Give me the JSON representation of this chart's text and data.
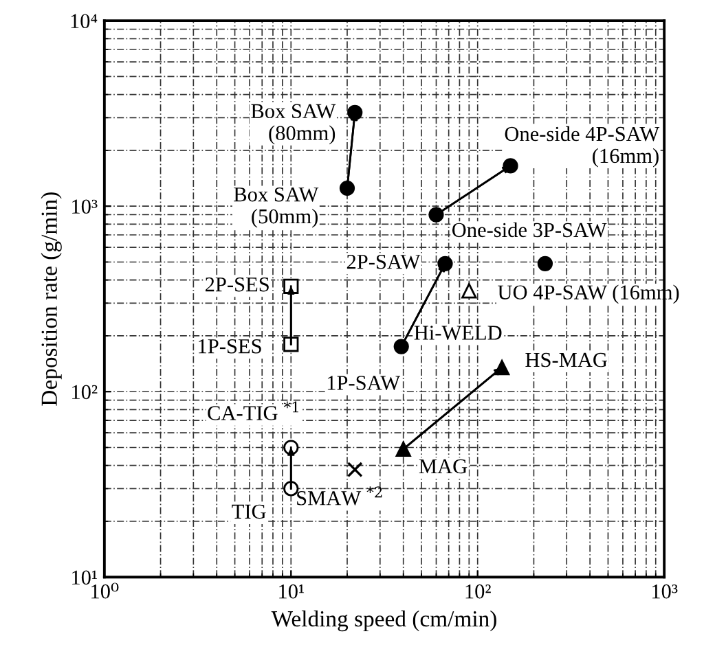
{
  "chart_data": {
    "type": "scatter",
    "xlabel": "Welding speed (cm/min)",
    "ylabel": "Deposition rate (g/min)",
    "log": "xy",
    "grid": true,
    "xlim": [
      1,
      1000
    ],
    "ylim": [
      10,
      10000
    ],
    "xticks": [
      {
        "value": 1,
        "label": "10⁰"
      },
      {
        "value": 10,
        "label": "10¹"
      },
      {
        "value": 100,
        "label": "10²"
      },
      {
        "value": 1000,
        "label": "10³"
      }
    ],
    "yticks": [
      {
        "value": 10,
        "label": "10¹"
      },
      {
        "value": 100,
        "label": "10²"
      },
      {
        "value": 1000,
        "label": "10³"
      },
      {
        "value": 10000,
        "label": "10⁴"
      }
    ],
    "series": [
      {
        "type": "line",
        "x": [
          20,
          22
        ],
        "values": [
          1250,
          3200
        ],
        "marker": "circle",
        "color": "#000000"
      },
      {
        "type": "line",
        "x": [
          60,
          150
        ],
        "values": [
          900,
          1650
        ],
        "marker": "circle",
        "color": "#000000"
      },
      {
        "type": "line",
        "x": [
          39,
          67
        ],
        "values": [
          175,
          490
        ],
        "marker": "circle",
        "color": "#000000"
      },
      {
        "x": [
          230
        ],
        "values": [
          490
        ],
        "marker": "circle",
        "color": "#000000"
      },
      {
        "type": "line",
        "x": [
          10,
          10
        ],
        "values": [
          180,
          370
        ],
        "marker": "square",
        "color": "#ffffff"
      },
      {
        "x": [
          90
        ],
        "values": [
          350
        ],
        "marker": "triangle",
        "color": "#ffffff"
      },
      {
        "type": "line",
        "x": [
          40,
          135
        ],
        "values": [
          49,
          135
        ],
        "marker": "triangle",
        "color": "#000000"
      },
      {
        "type": "line",
        "x": [
          10,
          10
        ],
        "values": [
          30,
          50
        ],
        "marker": "circle",
        "color": "#ffffff"
      },
      {
        "x": [
          22
        ],
        "values": [
          38
        ],
        "marker": "cross",
        "color": "#000000"
      }
    ],
    "annotations": [
      {
        "text": "Box SAW\n(80mm)",
        "x": 22,
        "y": 3200
      },
      {
        "text": "Box SAW\n(50mm)",
        "x": 20,
        "y": 1250
      },
      {
        "text": "One-side 4P-SAW\n(16mm)",
        "x": 150,
        "y": 1650
      },
      {
        "text": "One-side 3P-SAW",
        "x": 60,
        "y": 900
      },
      {
        "text": "2P-SAW",
        "x": 67,
        "y": 490
      },
      {
        "text": "UO 4P-SAW (16mm)",
        "x": 230,
        "y": 490
      },
      {
        "text": "Hi-WELD",
        "x": 90,
        "y": 350
      },
      {
        "text": "1P-SAW",
        "x": 39,
        "y": 175
      },
      {
        "text": "2P-SES",
        "x": 10,
        "y": 370
      },
      {
        "text": "1P-SES",
        "x": 10,
        "y": 180
      },
      {
        "text": "HS-MAG",
        "x": 135,
        "y": 135
      },
      {
        "text": "MAG",
        "x": 40,
        "y": 49
      },
      {
        "text": "CA-TIG $^{*1}$",
        "x": 10,
        "y": 50
      },
      {
        "text": "TIG",
        "x": 10,
        "y": 30
      },
      {
        "text": "SMAW $^{*2}$",
        "x": 22,
        "y": 38
      }
    ]
  }
}
